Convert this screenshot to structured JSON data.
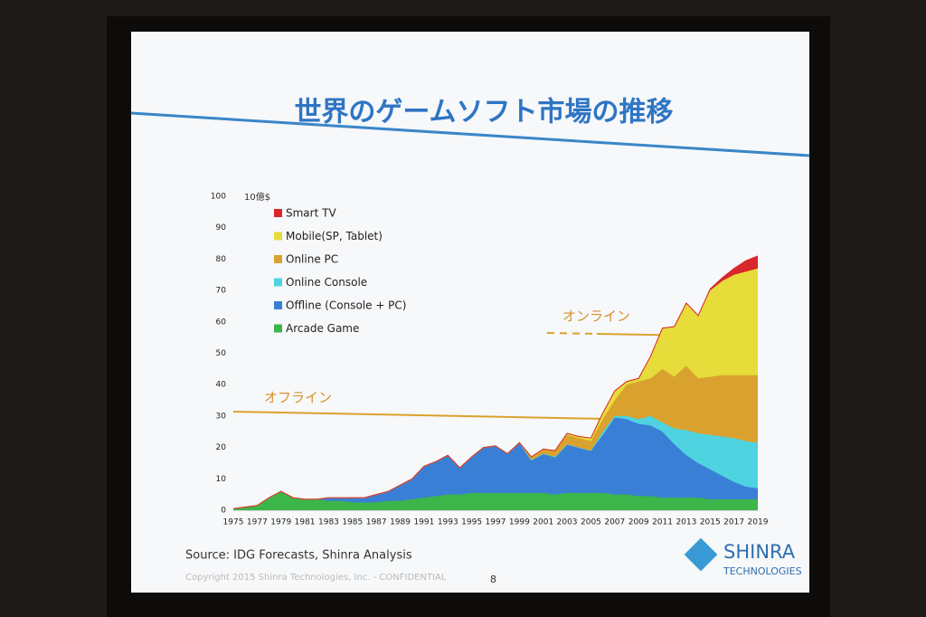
{
  "chart_data": {
    "type": "stacked-area",
    "title": "世界のゲームソフト市場の推移",
    "y_unit": "10億$",
    "annotations": [
      "オンライン",
      "オフライン"
    ],
    "x": [
      1975,
      1976,
      1977,
      1978,
      1979,
      1980,
      1981,
      1982,
      1983,
      1984,
      1985,
      1986,
      1987,
      1988,
      1989,
      1990,
      1991,
      1992,
      1993,
      1994,
      1995,
      1996,
      1997,
      1998,
      1999,
      2000,
      2001,
      2002,
      2003,
      2004,
      2005,
      2006,
      2007,
      2008,
      2009,
      2010,
      2011,
      2012,
      2013,
      2014,
      2015,
      2016,
      2017,
      2018,
      2019
    ],
    "xlim": [
      1975,
      2019
    ],
    "xticks": [
      1975,
      1977,
      1979,
      1981,
      1983,
      1985,
      1987,
      1989,
      1991,
      1993,
      1995,
      1997,
      1999,
      2001,
      2003,
      2005,
      2007,
      2009,
      2011,
      2013,
      2015,
      2017,
      2019
    ],
    "ylim": [
      0,
      100
    ],
    "yticks": [
      0,
      10,
      20,
      30,
      40,
      50,
      60,
      70,
      80,
      90,
      100
    ],
    "series": [
      {
        "name": "Arcade Game",
        "color": "#3cb54a",
        "values": [
          0.5,
          1,
          1.5,
          4,
          6,
          4,
          3.5,
          3.5,
          3,
          3,
          2.5,
          2.5,
          2.5,
          3,
          3,
          3.5,
          4,
          4.5,
          5,
          5,
          5.5,
          5.5,
          5.5,
          5.5,
          5.5,
          5.5,
          5.5,
          5,
          5.5,
          5.5,
          5.5,
          5.5,
          5,
          5,
          4.5,
          4.5,
          4,
          4,
          4,
          4,
          3.5,
          3.5,
          3.5,
          3.5,
          3.5
        ]
      },
      {
        "name": "Offline (Console + PC)",
        "color": "#3a7fd6",
        "values": [
          0,
          0,
          0,
          0,
          0,
          0,
          0,
          0,
          1,
          1,
          1.5,
          1.5,
          2.5,
          3,
          5,
          6.5,
          10,
          11,
          12.5,
          8.5,
          11.5,
          14.5,
          15,
          12.5,
          16,
          10.5,
          12.5,
          12,
          15.5,
          14.5,
          13.5,
          18.5,
          24.5,
          24,
          23,
          22.5,
          21,
          17,
          13.5,
          11,
          9.5,
          7.5,
          5.5,
          4,
          3.5
        ]
      },
      {
        "name": "Online Console",
        "color": "#4fd3e0",
        "values": [
          0,
          0,
          0,
          0,
          0,
          0,
          0,
          0,
          0,
          0,
          0,
          0,
          0,
          0,
          0,
          0,
          0,
          0,
          0,
          0,
          0,
          0,
          0,
          0,
          0,
          0,
          0,
          0,
          0,
          0,
          0,
          1,
          0.5,
          1,
          1.5,
          3,
          3,
          5,
          8,
          9.5,
          11,
          12.5,
          14,
          14.5,
          14.5
        ]
      },
      {
        "name": "Online PC",
        "color": "#d9a22e",
        "values": [
          0,
          0,
          0,
          0,
          0,
          0,
          0,
          0,
          0,
          0,
          0,
          0,
          0,
          0,
          0,
          0,
          0,
          0,
          0,
          0,
          0,
          0,
          0,
          0,
          0,
          1,
          1.5,
          2,
          3,
          3,
          3,
          4,
          5,
          10,
          12,
          12,
          17,
          16.5,
          20.5,
          17.5,
          18.5,
          19.5,
          20,
          21,
          21.5
        ]
      },
      {
        "name": "Mobile(SP, Tablet)",
        "color": "#e6dc3a",
        "values": [
          0,
          0,
          0,
          0,
          0,
          0,
          0,
          0,
          0,
          0,
          0,
          0,
          0,
          0,
          0,
          0,
          0,
          0,
          0,
          0,
          0,
          0,
          0,
          0,
          0,
          0,
          0,
          0,
          0.5,
          0.5,
          1,
          2,
          3,
          1,
          1,
          7,
          13,
          16,
          20,
          20,
          27.5,
          30,
          32,
          33,
          34
        ]
      },
      {
        "name": "Smart TV",
        "color": "#d9262a",
        "values": [
          0,
          0,
          0,
          0,
          0,
          0,
          0,
          0,
          0,
          0,
          0,
          0,
          0,
          0,
          0,
          0,
          0,
          0,
          0,
          0,
          0,
          0,
          0,
          0,
          0,
          0,
          0,
          0,
          0,
          0,
          0,
          0,
          0,
          0,
          0,
          0,
          0,
          0,
          0,
          0,
          0.5,
          1,
          2,
          3.5,
          4
        ]
      }
    ],
    "source": "Source: IDG Forecasts, Shinra Analysis",
    "copyright": "Copyright 2015 Shinra Technologies, Inc. - CONFIDENTIAL",
    "page": "8",
    "logo": [
      "SHINRA",
      "TECHNOLOGIES"
    ]
  }
}
